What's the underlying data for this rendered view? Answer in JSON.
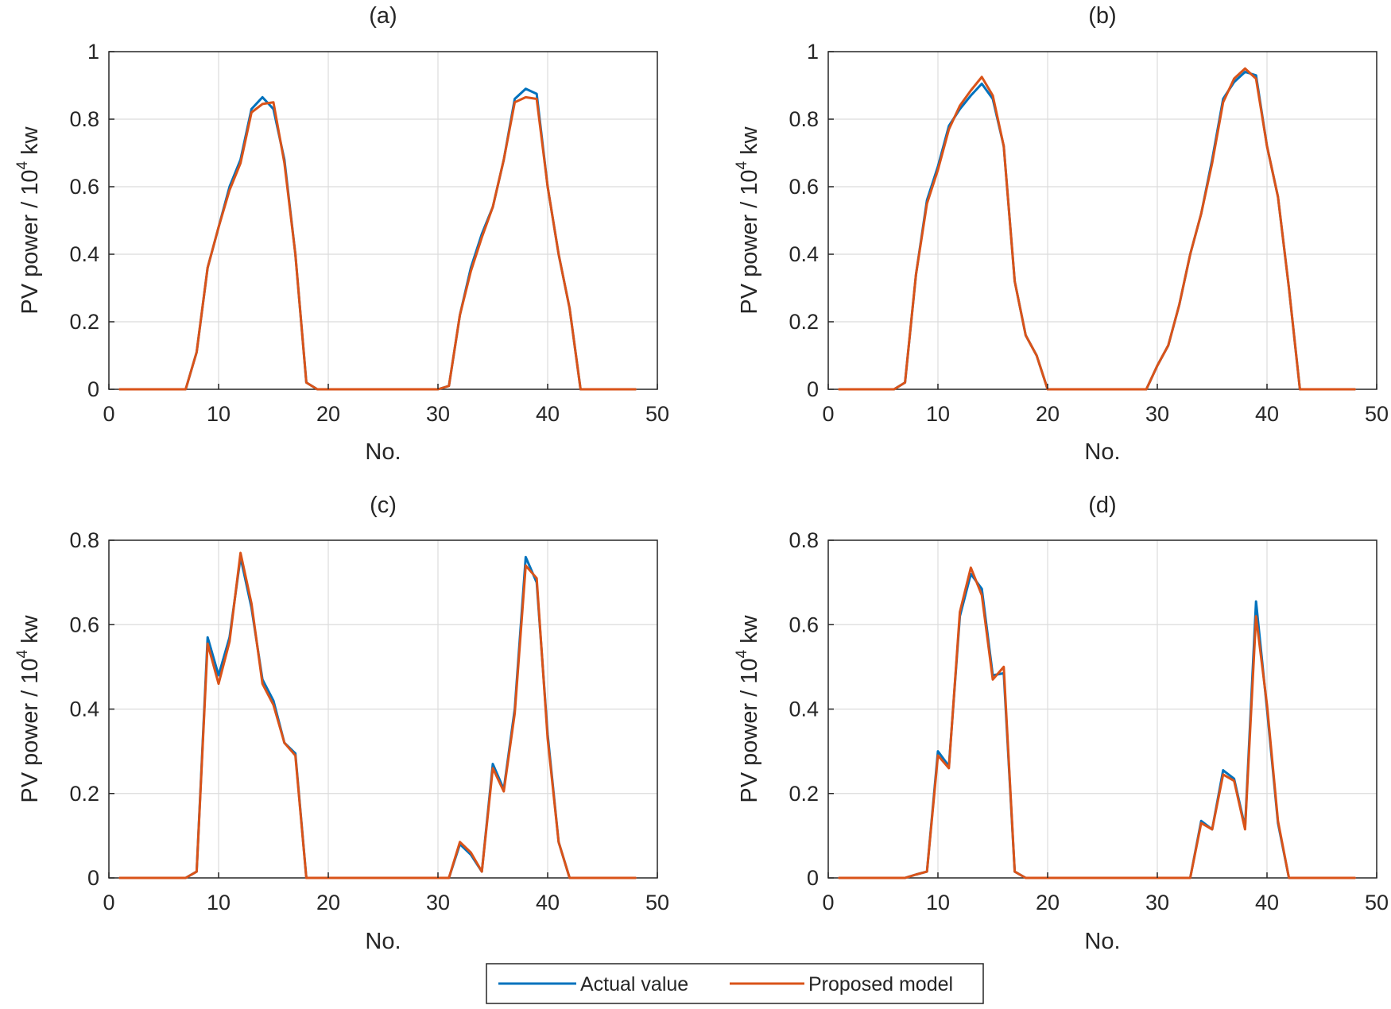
{
  "chart_data": [
    {
      "type": "line",
      "title": "(a)",
      "xlabel": "No.",
      "ylabel": "PV power / 10",
      "ylabel_exponent": "4",
      "ylabel_unit": " kw",
      "xlim": [
        0,
        50
      ],
      "ylim": [
        0,
        1
      ],
      "xticks": [
        0,
        10,
        20,
        30,
        40,
        50
      ],
      "yticks": [
        0,
        0.2,
        0.4,
        0.6,
        0.8,
        1
      ],
      "ytick_labels": [
        "0",
        "0.2",
        "0.4",
        "0.6",
        "0.8",
        "1"
      ],
      "grid": true,
      "x": [
        1,
        2,
        3,
        4,
        5,
        6,
        7,
        8,
        9,
        10,
        11,
        12,
        13,
        14,
        15,
        16,
        17,
        18,
        19,
        20,
        21,
        22,
        23,
        24,
        25,
        26,
        27,
        28,
        29,
        30,
        31,
        32,
        33,
        34,
        35,
        36,
        37,
        38,
        39,
        40,
        41,
        42,
        43,
        44,
        45,
        46,
        47,
        48
      ],
      "series": [
        {
          "name": "Actual value",
          "color": "#0072BD",
          "values": [
            0,
            0,
            0,
            0,
            0,
            0,
            0,
            0.11,
            0.36,
            0.48,
            0.6,
            0.68,
            0.83,
            0.865,
            0.83,
            0.68,
            0.4,
            0.02,
            0,
            0,
            0,
            0,
            0,
            0,
            0,
            0,
            0,
            0,
            0,
            0,
            0.01,
            0.22,
            0.36,
            0.46,
            0.54,
            0.68,
            0.86,
            0.89,
            0.875,
            0.6,
            0.4,
            0.24,
            0,
            0,
            0,
            0,
            0,
            0
          ]
        },
        {
          "name": "Proposed model",
          "color": "#D95319",
          "values": [
            0,
            0,
            0,
            0,
            0,
            0,
            0,
            0.11,
            0.36,
            0.48,
            0.59,
            0.67,
            0.82,
            0.845,
            0.85,
            0.67,
            0.4,
            0.02,
            0,
            0,
            0,
            0,
            0,
            0,
            0,
            0,
            0,
            0,
            0,
            0,
            0.01,
            0.22,
            0.35,
            0.45,
            0.54,
            0.68,
            0.85,
            0.865,
            0.86,
            0.6,
            0.4,
            0.24,
            0,
            0,
            0,
            0,
            0,
            0
          ]
        }
      ]
    },
    {
      "type": "line",
      "title": "(b)",
      "xlabel": "No.",
      "ylabel": "PV power / 10",
      "ylabel_exponent": "4",
      "ylabel_unit": " kw",
      "xlim": [
        0,
        50
      ],
      "ylim": [
        0,
        1
      ],
      "xticks": [
        0,
        10,
        20,
        30,
        40,
        50
      ],
      "yticks": [
        0,
        0.2,
        0.4,
        0.6,
        0.8,
        1
      ],
      "ytick_labels": [
        "0",
        "0.2",
        "0.4",
        "0.6",
        "0.8",
        "1"
      ],
      "grid": true,
      "x": [
        1,
        2,
        3,
        4,
        5,
        6,
        7,
        8,
        9,
        10,
        11,
        12,
        13,
        14,
        15,
        16,
        17,
        18,
        19,
        20,
        21,
        22,
        23,
        24,
        25,
        26,
        27,
        28,
        29,
        30,
        31,
        32,
        33,
        34,
        35,
        36,
        37,
        38,
        39,
        40,
        41,
        42,
        43,
        44,
        45,
        46,
        47,
        48
      ],
      "series": [
        {
          "name": "Actual value",
          "color": "#0072BD",
          "values": [
            0,
            0,
            0,
            0,
            0,
            0,
            0.02,
            0.34,
            0.56,
            0.66,
            0.78,
            0.83,
            0.87,
            0.905,
            0.86,
            0.72,
            0.32,
            0.16,
            0.1,
            0,
            0,
            0,
            0,
            0,
            0,
            0,
            0,
            0,
            0,
            0.07,
            0.13,
            0.25,
            0.4,
            0.52,
            0.68,
            0.86,
            0.91,
            0.94,
            0.93,
            0.72,
            0.57,
            0.3,
            0,
            0,
            0,
            0,
            0,
            0
          ]
        },
        {
          "name": "Proposed model",
          "color": "#D95319",
          "values": [
            0,
            0,
            0,
            0,
            0,
            0,
            0.02,
            0.34,
            0.55,
            0.65,
            0.77,
            0.84,
            0.885,
            0.925,
            0.87,
            0.72,
            0.32,
            0.16,
            0.1,
            0,
            0,
            0,
            0,
            0,
            0,
            0,
            0,
            0,
            0,
            0.07,
            0.13,
            0.25,
            0.4,
            0.52,
            0.67,
            0.85,
            0.92,
            0.95,
            0.92,
            0.72,
            0.57,
            0.3,
            0,
            0,
            0,
            0,
            0,
            0
          ]
        }
      ]
    },
    {
      "type": "line",
      "title": "(c)",
      "xlabel": "No.",
      "ylabel": "PV power / 10",
      "ylabel_exponent": "4",
      "ylabel_unit": " kw",
      "xlim": [
        0,
        50
      ],
      "ylim": [
        0,
        0.8
      ],
      "xticks": [
        0,
        10,
        20,
        30,
        40,
        50
      ],
      "yticks": [
        0,
        0.2,
        0.4,
        0.6,
        0.8
      ],
      "ytick_labels": [
        "0",
        "0.2",
        "0.4",
        "0.6",
        "0.8"
      ],
      "grid": true,
      "x": [
        1,
        2,
        3,
        4,
        5,
        6,
        7,
        8,
        9,
        10,
        11,
        12,
        13,
        14,
        15,
        16,
        17,
        18,
        19,
        20,
        21,
        22,
        23,
        24,
        25,
        26,
        27,
        28,
        29,
        30,
        31,
        32,
        33,
        34,
        35,
        36,
        37,
        38,
        39,
        40,
        41,
        42,
        43,
        44,
        45,
        46,
        47,
        48
      ],
      "series": [
        {
          "name": "Actual value",
          "color": "#0072BD",
          "values": [
            0,
            0,
            0,
            0,
            0,
            0,
            0,
            0.015,
            0.57,
            0.48,
            0.57,
            0.76,
            0.64,
            0.47,
            0.42,
            0.32,
            0.295,
            0,
            0,
            0,
            0,
            0,
            0,
            0,
            0,
            0,
            0,
            0,
            0,
            0,
            0,
            0.08,
            0.055,
            0.015,
            0.27,
            0.21,
            0.4,
            0.76,
            0.7,
            0.34,
            0.085,
            0,
            0,
            0,
            0,
            0,
            0,
            0
          ]
        },
        {
          "name": "Proposed model",
          "color": "#D95319",
          "values": [
            0,
            0,
            0,
            0,
            0,
            0,
            0,
            0.015,
            0.555,
            0.46,
            0.56,
            0.77,
            0.65,
            0.46,
            0.41,
            0.32,
            0.29,
            0,
            0,
            0,
            0,
            0,
            0,
            0,
            0,
            0,
            0,
            0,
            0,
            0,
            0,
            0.085,
            0.06,
            0.015,
            0.26,
            0.205,
            0.39,
            0.74,
            0.71,
            0.33,
            0.085,
            0,
            0,
            0,
            0,
            0,
            0,
            0
          ]
        }
      ]
    },
    {
      "type": "line",
      "title": "(d)",
      "xlabel": "No.",
      "ylabel": "PV power / 10",
      "ylabel_exponent": "4",
      "ylabel_unit": " kw",
      "xlim": [
        0,
        50
      ],
      "ylim": [
        0,
        0.8
      ],
      "xticks": [
        0,
        10,
        20,
        30,
        40,
        50
      ],
      "yticks": [
        0,
        0.2,
        0.4,
        0.6,
        0.8
      ],
      "ytick_labels": [
        "0",
        "0.2",
        "0.4",
        "0.6",
        "0.8"
      ],
      "grid": true,
      "x": [
        1,
        2,
        3,
        4,
        5,
        6,
        7,
        8,
        9,
        10,
        11,
        12,
        13,
        14,
        15,
        16,
        17,
        18,
        19,
        20,
        21,
        22,
        23,
        24,
        25,
        26,
        27,
        28,
        29,
        30,
        31,
        32,
        33,
        34,
        35,
        36,
        37,
        38,
        39,
        40,
        41,
        42,
        43,
        44,
        45,
        46,
        47,
        48
      ],
      "series": [
        {
          "name": "Actual value",
          "color": "#0072BD",
          "values": [
            0,
            0,
            0,
            0,
            0,
            0,
            0,
            0.008,
            0.015,
            0.3,
            0.265,
            0.62,
            0.72,
            0.685,
            0.48,
            0.485,
            0.015,
            0,
            0,
            0,
            0,
            0,
            0,
            0,
            0,
            0,
            0,
            0,
            0,
            0,
            0,
            0,
            0,
            0.135,
            0.115,
            0.255,
            0.235,
            0.12,
            0.655,
            0.4,
            0.13,
            0,
            0,
            0,
            0,
            0,
            0,
            0
          ]
        },
        {
          "name": "Proposed model",
          "color": "#D95319",
          "values": [
            0,
            0,
            0,
            0,
            0,
            0,
            0,
            0.008,
            0.015,
            0.29,
            0.26,
            0.63,
            0.735,
            0.67,
            0.47,
            0.5,
            0.015,
            0,
            0,
            0,
            0,
            0,
            0,
            0,
            0,
            0,
            0,
            0,
            0,
            0,
            0,
            0,
            0,
            0.13,
            0.115,
            0.245,
            0.23,
            0.115,
            0.62,
            0.41,
            0.135,
            0,
            0,
            0,
            0,
            0,
            0,
            0
          ]
        }
      ]
    }
  ],
  "legend": {
    "placement": "bottom-center",
    "entries": [
      {
        "label": "Actual value",
        "color": "#0072BD"
      },
      {
        "label": "Proposed model",
        "color": "#D95319"
      }
    ]
  }
}
